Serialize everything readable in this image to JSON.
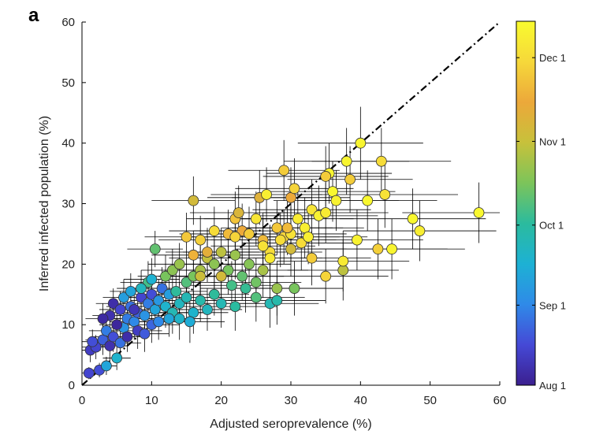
{
  "panel_label": "a",
  "chart_data": {
    "type": "scatter",
    "title": "",
    "xlabel": "Adjusted seroprevalence (%)",
    "ylabel": "Inferred infected population (%)",
    "xlim": [
      0,
      60
    ],
    "ylim": [
      0,
      60
    ],
    "xticks": [
      0,
      10,
      20,
      30,
      40,
      50,
      60
    ],
    "yticks": [
      0,
      10,
      20,
      30,
      40,
      50,
      60
    ],
    "identity_line": {
      "style": "dash-dot",
      "from": [
        0,
        0
      ],
      "to": [
        60,
        60
      ]
    },
    "colorbar": {
      "label_ticks": [
        "Aug 1",
        "Sep 1",
        "Oct 1",
        "Nov 1",
        "Dec 1"
      ],
      "tick_positions": [
        0.0,
        0.22,
        0.44,
        0.67,
        0.9
      ],
      "colormap": [
        "#3b1f8f",
        "#4549d6",
        "#2f8ae8",
        "#1db1d4",
        "#2bbb9e",
        "#7cc45a",
        "#c7c13b",
        "#eca83a",
        "#f6d83a",
        "#f9fb2e"
      ]
    },
    "points_encoding": [
      "x",
      "y",
      "x_err",
      "y_err",
      "color_0to1"
    ],
    "points": [
      [
        1.0,
        2.0,
        1.0,
        1.0,
        0.1
      ],
      [
        2.5,
        2.5,
        1.2,
        1.2,
        0.12
      ],
      [
        3.5,
        3.2,
        1.5,
        1.5,
        0.3
      ],
      [
        5.0,
        4.5,
        2.0,
        2.0,
        0.35
      ],
      [
        1.2,
        5.8,
        1.5,
        2.0,
        0.08
      ],
      [
        2.0,
        6.3,
        2.0,
        2.0,
        0.1
      ],
      [
        1.5,
        7.2,
        2.0,
        2.0,
        0.12
      ],
      [
        3.0,
        7.5,
        2.5,
        2.5,
        0.15
      ],
      [
        4.0,
        6.5,
        2.5,
        2.5,
        0.05
      ],
      [
        3.5,
        9.0,
        2.5,
        2.5,
        0.2
      ],
      [
        4.5,
        8.0,
        3.0,
        2.5,
        0.12
      ],
      [
        5.5,
        7.0,
        3.0,
        2.5,
        0.18
      ],
      [
        6.0,
        9.5,
        3.0,
        2.5,
        0.25
      ],
      [
        4.0,
        11.5,
        2.5,
        2.5,
        0.05
      ],
      [
        4.5,
        13.5,
        2.5,
        2.5,
        0.04
      ],
      [
        5.5,
        12.5,
        3.0,
        3.0,
        0.1
      ],
      [
        6.5,
        11.0,
        3.0,
        3.0,
        0.2
      ],
      [
        7.0,
        13.0,
        3.5,
        3.0,
        0.18
      ],
      [
        7.5,
        10.5,
        3.5,
        3.0,
        0.22
      ],
      [
        8.0,
        12.0,
        3.5,
        3.0,
        0.15
      ],
      [
        8.5,
        14.5,
        3.5,
        3.0,
        0.1
      ],
      [
        9.0,
        11.5,
        4.0,
        3.0,
        0.25
      ],
      [
        9.5,
        13.5,
        4.0,
        3.0,
        0.2
      ],
      [
        10.0,
        15.0,
        4.0,
        3.0,
        0.12
      ],
      [
        10.5,
        12.5,
        4.0,
        3.0,
        0.3
      ],
      [
        11.0,
        14.0,
        4.0,
        3.5,
        0.26
      ],
      [
        11.5,
        16.0,
        4.0,
        3.5,
        0.18
      ],
      [
        12.0,
        13.0,
        4.5,
        3.5,
        0.35
      ],
      [
        12.5,
        15.0,
        4.5,
        3.5,
        0.28
      ],
      [
        13.0,
        12.0,
        4.5,
        3.5,
        0.4
      ],
      [
        13.5,
        15.5,
        4.5,
        3.5,
        0.45
      ],
      [
        14.0,
        13.5,
        4.5,
        3.5,
        0.38
      ],
      [
        8.0,
        9.0,
        3.5,
        3.0,
        0.08
      ],
      [
        9.0,
        8.5,
        3.5,
        3.0,
        0.14
      ],
      [
        10.0,
        10.0,
        4.0,
        3.0,
        0.16
      ],
      [
        6.0,
        14.5,
        3.0,
        3.0,
        0.28
      ],
      [
        7.0,
        15.5,
        3.0,
        3.0,
        0.3
      ],
      [
        9.5,
        17.0,
        4.0,
        3.5,
        0.48
      ],
      [
        10.5,
        22.5,
        4.0,
        3.0,
        0.52
      ],
      [
        12.0,
        18.0,
        4.0,
        3.5,
        0.55
      ],
      [
        13.0,
        19.0,
        4.5,
        3.5,
        0.58
      ],
      [
        14.0,
        20.0,
        4.5,
        3.5,
        0.6
      ],
      [
        15.0,
        17.0,
        4.5,
        3.5,
        0.5
      ],
      [
        16.0,
        18.0,
        5.0,
        3.5,
        0.55
      ],
      [
        15.0,
        14.5,
        5.0,
        3.5,
        0.4
      ],
      [
        16.0,
        12.0,
        5.0,
        3.5,
        0.35
      ],
      [
        17.0,
        14.0,
        5.0,
        3.5,
        0.42
      ],
      [
        18.0,
        12.5,
        5.0,
        3.5,
        0.38
      ],
      [
        19.0,
        15.0,
        5.0,
        3.5,
        0.45
      ],
      [
        20.0,
        13.5,
        5.5,
        4.0,
        0.4
      ],
      [
        15.5,
        10.5,
        5.0,
        3.5,
        0.32
      ],
      [
        14.0,
        11.0,
        4.5,
        3.5,
        0.36
      ],
      [
        17.0,
        19.0,
        5.0,
        4.0,
        0.62
      ],
      [
        18.0,
        21.0,
        5.5,
        4.0,
        0.66
      ],
      [
        19.0,
        20.0,
        5.5,
        4.0,
        0.58
      ],
      [
        20.0,
        22.0,
        5.5,
        4.0,
        0.65
      ],
      [
        21.0,
        19.0,
        6.0,
        4.0,
        0.55
      ],
      [
        22.0,
        21.5,
        6.0,
        4.0,
        0.6
      ],
      [
        23.0,
        18.0,
        6.0,
        4.0,
        0.52
      ],
      [
        24.0,
        20.0,
        6.0,
        4.0,
        0.57
      ],
      [
        21.5,
        16.5,
        6.0,
        4.0,
        0.48
      ],
      [
        23.5,
        16.0,
        6.5,
        4.0,
        0.46
      ],
      [
        25.0,
        17.0,
        6.5,
        4.0,
        0.54
      ],
      [
        26.0,
        19.0,
        6.5,
        4.5,
        0.62
      ],
      [
        22.0,
        13.0,
        6.0,
        4.0,
        0.44
      ],
      [
        25.0,
        14.5,
        7.0,
        4.0,
        0.5
      ],
      [
        27.0,
        13.5,
        7.0,
        4.0,
        0.4
      ],
      [
        28.0,
        14.0,
        7.0,
        4.0,
        0.42
      ],
      [
        30.5,
        16.0,
        7.0,
        4.5,
        0.55
      ],
      [
        37.5,
        19.0,
        8.0,
        5.0,
        0.65
      ],
      [
        28.0,
        16.0,
        7.0,
        4.5,
        0.6
      ],
      [
        16.0,
        30.5,
        6.0,
        4.0,
        0.7
      ],
      [
        25.5,
        31.0,
        7.5,
        4.5,
        0.74
      ],
      [
        26.5,
        31.5,
        8.0,
        4.5,
        0.96
      ],
      [
        25.0,
        27.5,
        7.5,
        4.5,
        0.93
      ],
      [
        22.0,
        27.5,
        7.0,
        4.5,
        0.84
      ],
      [
        22.5,
        28.5,
        7.0,
        4.5,
        0.72
      ],
      [
        21.0,
        25.0,
        7.0,
        4.0,
        0.82
      ],
      [
        23.0,
        25.5,
        7.0,
        4.5,
        0.78
      ],
      [
        15.0,
        24.5,
        6.0,
        4.0,
        0.85
      ],
      [
        17.0,
        24.0,
        6.0,
        4.0,
        0.87
      ],
      [
        16.0,
        21.5,
        6.0,
        4.0,
        0.8
      ],
      [
        18.0,
        22.0,
        6.0,
        4.0,
        0.75
      ],
      [
        17.0,
        18.0,
        6.0,
        4.0,
        0.68
      ],
      [
        20.0,
        18.0,
        6.0,
        4.0,
        0.7
      ],
      [
        22.0,
        24.5,
        7.0,
        4.5,
        0.88
      ],
      [
        24.0,
        25.0,
        7.0,
        4.5,
        0.86
      ],
      [
        26.0,
        24.0,
        7.5,
        4.5,
        0.82
      ],
      [
        27.0,
        22.0,
        7.5,
        4.5,
        0.9
      ],
      [
        28.0,
        26.0,
        8.0,
        4.5,
        0.85
      ],
      [
        29.0,
        24.5,
        8.0,
        4.5,
        0.88
      ],
      [
        30.0,
        25.0,
        8.0,
        4.5,
        0.92
      ],
      [
        31.0,
        27.5,
        8.0,
        5.0,
        0.95
      ],
      [
        32.0,
        26.0,
        8.5,
        5.0,
        0.96
      ],
      [
        33.0,
        29.0,
        8.5,
        5.0,
        0.93
      ],
      [
        29.0,
        35.5,
        8.0,
        5.0,
        0.86
      ],
      [
        30.0,
        31.0,
        8.5,
        5.0,
        0.78
      ],
      [
        30.5,
        32.5,
        8.5,
        5.0,
        0.88
      ],
      [
        34.0,
        28.0,
        8.5,
        5.0,
        0.97
      ],
      [
        35.0,
        28.5,
        9.0,
        5.0,
        0.95
      ],
      [
        35.5,
        35.0,
        9.0,
        5.0,
        0.98
      ],
      [
        36.0,
        32.0,
        9.0,
        5.0,
        0.99
      ],
      [
        36.5,
        30.5,
        9.0,
        5.0,
        0.97
      ],
      [
        35.0,
        34.5,
        9.0,
        5.0,
        0.86
      ],
      [
        38.0,
        37.0,
        9.0,
        5.5,
        0.98
      ],
      [
        38.5,
        34.0,
        9.0,
        5.5,
        0.86
      ],
      [
        40.0,
        40.0,
        9.0,
        6.0,
        0.98
      ],
      [
        33.0,
        21.0,
        8.5,
        4.5,
        0.86
      ],
      [
        35.0,
        18.0,
        9.0,
        4.5,
        0.88
      ],
      [
        37.5,
        20.5,
        9.5,
        5.0,
        0.95
      ],
      [
        39.5,
        24.0,
        9.5,
        5.0,
        0.97
      ],
      [
        41.0,
        30.5,
        10.0,
        5.0,
        0.99
      ],
      [
        43.0,
        37.0,
        10.0,
        5.5,
        0.9
      ],
      [
        43.5,
        31.5,
        10.5,
        5.5,
        0.92
      ],
      [
        42.5,
        22.5,
        10.0,
        5.0,
        0.87
      ],
      [
        44.5,
        22.5,
        10.5,
        5.0,
        0.98
      ],
      [
        47.5,
        27.5,
        10.5,
        5.0,
        0.99
      ],
      [
        48.5,
        25.5,
        11.0,
        5.0,
        0.96
      ],
      [
        57.0,
        28.5,
        11.0,
        5.0,
        0.99
      ],
      [
        26.0,
        23.0,
        7.5,
        4.5,
        0.92
      ],
      [
        27.0,
        21.0,
        7.5,
        4.5,
        0.95
      ],
      [
        28.5,
        24.0,
        8.0,
        4.5,
        0.9
      ],
      [
        29.5,
        26.0,
        8.0,
        4.5,
        0.82
      ],
      [
        31.5,
        23.5,
        8.5,
        4.5,
        0.9
      ],
      [
        32.5,
        24.5,
        8.5,
        4.5,
        0.96
      ],
      [
        30.0,
        22.5,
        8.0,
        4.5,
        0.7
      ],
      [
        19.0,
        25.5,
        6.5,
        4.0,
        0.9
      ],
      [
        3.0,
        11.0,
        2.5,
        2.5,
        0.03
      ],
      [
        5.0,
        10.0,
        2.5,
        2.5,
        0.02
      ],
      [
        6.5,
        8.0,
        3.0,
        2.5,
        0.04
      ],
      [
        7.5,
        12.5,
        3.0,
        3.0,
        0.06
      ],
      [
        11.0,
        10.5,
        4.0,
        3.0,
        0.22
      ],
      [
        12.5,
        11.0,
        4.5,
        3.0,
        0.3
      ],
      [
        8.5,
        16.0,
        3.5,
        3.0,
        0.38
      ],
      [
        10.0,
        17.5,
        4.0,
        3.5,
        0.34
      ]
    ]
  }
}
